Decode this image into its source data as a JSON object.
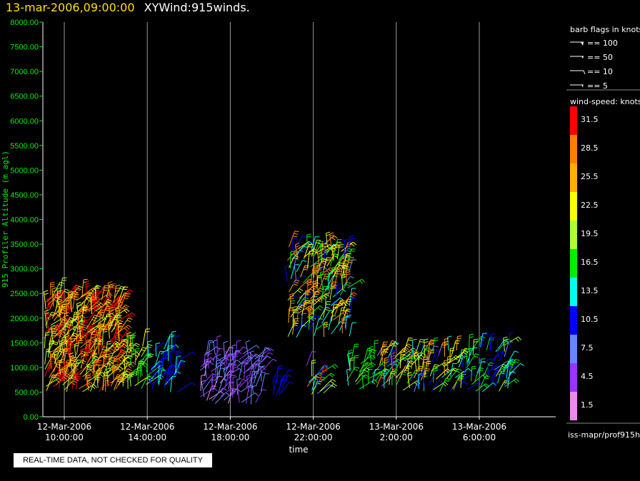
{
  "header": {
    "time_label": "13-mar-2006,09:00:00",
    "product_label": "XYWind:915winds."
  },
  "legend": {
    "barb_title": "barb flags in knots",
    "barb_items": [
      {
        "label": "== 100",
        "kind": "pennant"
      },
      {
        "label": "== 50",
        "kind": "pennant-small"
      },
      {
        "label": "== 10",
        "kind": "full-barb"
      },
      {
        "label": "== 5",
        "kind": "half-barb"
      }
    ],
    "speed_title": "wind-speed: knots",
    "color_scale": [
      {
        "label": "31.5",
        "color": "#ff0000"
      },
      {
        "label": "28.5",
        "color": "#ff7f00"
      },
      {
        "label": "25.5",
        "color": "#ffb000"
      },
      {
        "label": "22.5",
        "color": "#ffff00"
      },
      {
        "label": "19.5",
        "color": "#aaff33"
      },
      {
        "label": "16.5",
        "color": "#00ee00"
      },
      {
        "label": "13.5",
        "color": "#00ffee"
      },
      {
        "label": "10.5",
        "color": "#0000ff"
      },
      {
        "label": "7.5",
        "color": "#6688ff"
      },
      {
        "label": "4.5",
        "color": "#9933ff"
      },
      {
        "label": "1.5",
        "color": "#ee88ee"
      }
    ],
    "source_label": "iss-mapr/prof915h"
  },
  "quality_note": "REAL-TIME DATA, NOT CHECKED FOR QUALITY",
  "chart_data": {
    "type": "scatter",
    "title": "13-mar-2006,09:00:00  XYWind:915winds.",
    "xlabel": "time",
    "ylabel": "915 Profiler Altitude (m agl)",
    "ylim": [
      0,
      8000
    ],
    "xlim_hours_from_first_tick": [
      -0.95,
      17.5
    ],
    "yticks": [
      "0.00",
      "500.00",
      "1000.00",
      "1500.00",
      "2000.00",
      "2500.00",
      "3000.00",
      "3500.00",
      "4000.00",
      "4500.00",
      "5000.00",
      "5500.00",
      "6000.00",
      "6500.00",
      "7000.00",
      "7500.00",
      "8000.00"
    ],
    "xticks": [
      {
        "date": "12-Mar-2006",
        "time": "10:00:00"
      },
      {
        "date": "12-Mar-2006",
        "time": "14:00:00"
      },
      {
        "date": "12-Mar-2006",
        "time": "18:00:00"
      },
      {
        "date": "12-Mar-2006",
        "time": "22:00:00"
      },
      {
        "date": "13-Mar-2006",
        "time": "2:00:00"
      },
      {
        "date": "13-Mar-2006",
        "time": "6:00:00"
      }
    ],
    "grid": "vertical lines at x ticks",
    "wind_clusters": [
      {
        "t_start": "12-Mar-2006 09:00",
        "t_end": "12-Mar-2006 12:45",
        "alt_min": 500,
        "alt_max": 2500,
        "speed_kt": [
          18,
          34
        ],
        "dominant": "red-orange-yellow"
      },
      {
        "t_start": "12-Mar-2006 12:45",
        "t_end": "12-Mar-2006 14:00",
        "alt_min": 500,
        "alt_max": 1500,
        "speed_kt": [
          15,
          22
        ],
        "dominant": "yellow-green"
      },
      {
        "t_start": "12-Mar-2006 14:00",
        "t_end": "12-Mar-2006 15:30",
        "alt_min": 500,
        "alt_max": 1400,
        "speed_kt": [
          9,
          14
        ],
        "dominant": "blue-cyan"
      },
      {
        "t_start": "12-Mar-2006 16:30",
        "t_end": "12-Mar-2006 19:30",
        "alt_min": 250,
        "alt_max": 1300,
        "speed_kt": [
          2,
          9
        ],
        "dominant": "violet-lightblue"
      },
      {
        "t_start": "12-Mar-2006 20:00",
        "t_end": "12-Mar-2006 20:30",
        "alt_min": 400,
        "alt_max": 800,
        "speed_kt": [
          9,
          12
        ],
        "dominant": "blue"
      },
      {
        "t_start": "12-Mar-2006 21:40",
        "t_end": "12-Mar-2006 22:30",
        "alt_min": 300,
        "alt_max": 1050,
        "speed_kt": [
          3,
          32
        ],
        "dominant": "mixed"
      },
      {
        "t_start": "12-Mar-2006 20:45",
        "t_end": "12-Mar-2006 23:45",
        "alt_min": 1600,
        "alt_max": 3450,
        "speed_kt": [
          8,
          30
        ],
        "dominant": "blue-cyan-green, red at lower right"
      },
      {
        "t_start": "12-Mar-2006 23:30",
        "t_end": "13-Mar-2006 01:00",
        "alt_min": 550,
        "alt_max": 1200,
        "speed_kt": [
          13,
          19
        ],
        "dominant": "green"
      },
      {
        "t_start": "13-Mar-2006 01:00",
        "t_end": "13-Mar-2006 05:00",
        "alt_min": 500,
        "alt_max": 1350,
        "speed_kt": [
          8,
          28
        ],
        "dominant": "green-yellow-orange"
      },
      {
        "t_start": "13-Mar-2006 05:00",
        "t_end": "13-Mar-2006 07:30",
        "alt_min": 500,
        "alt_max": 1450,
        "speed_kt": [
          8,
          19
        ],
        "dominant": "blue-green"
      }
    ]
  }
}
